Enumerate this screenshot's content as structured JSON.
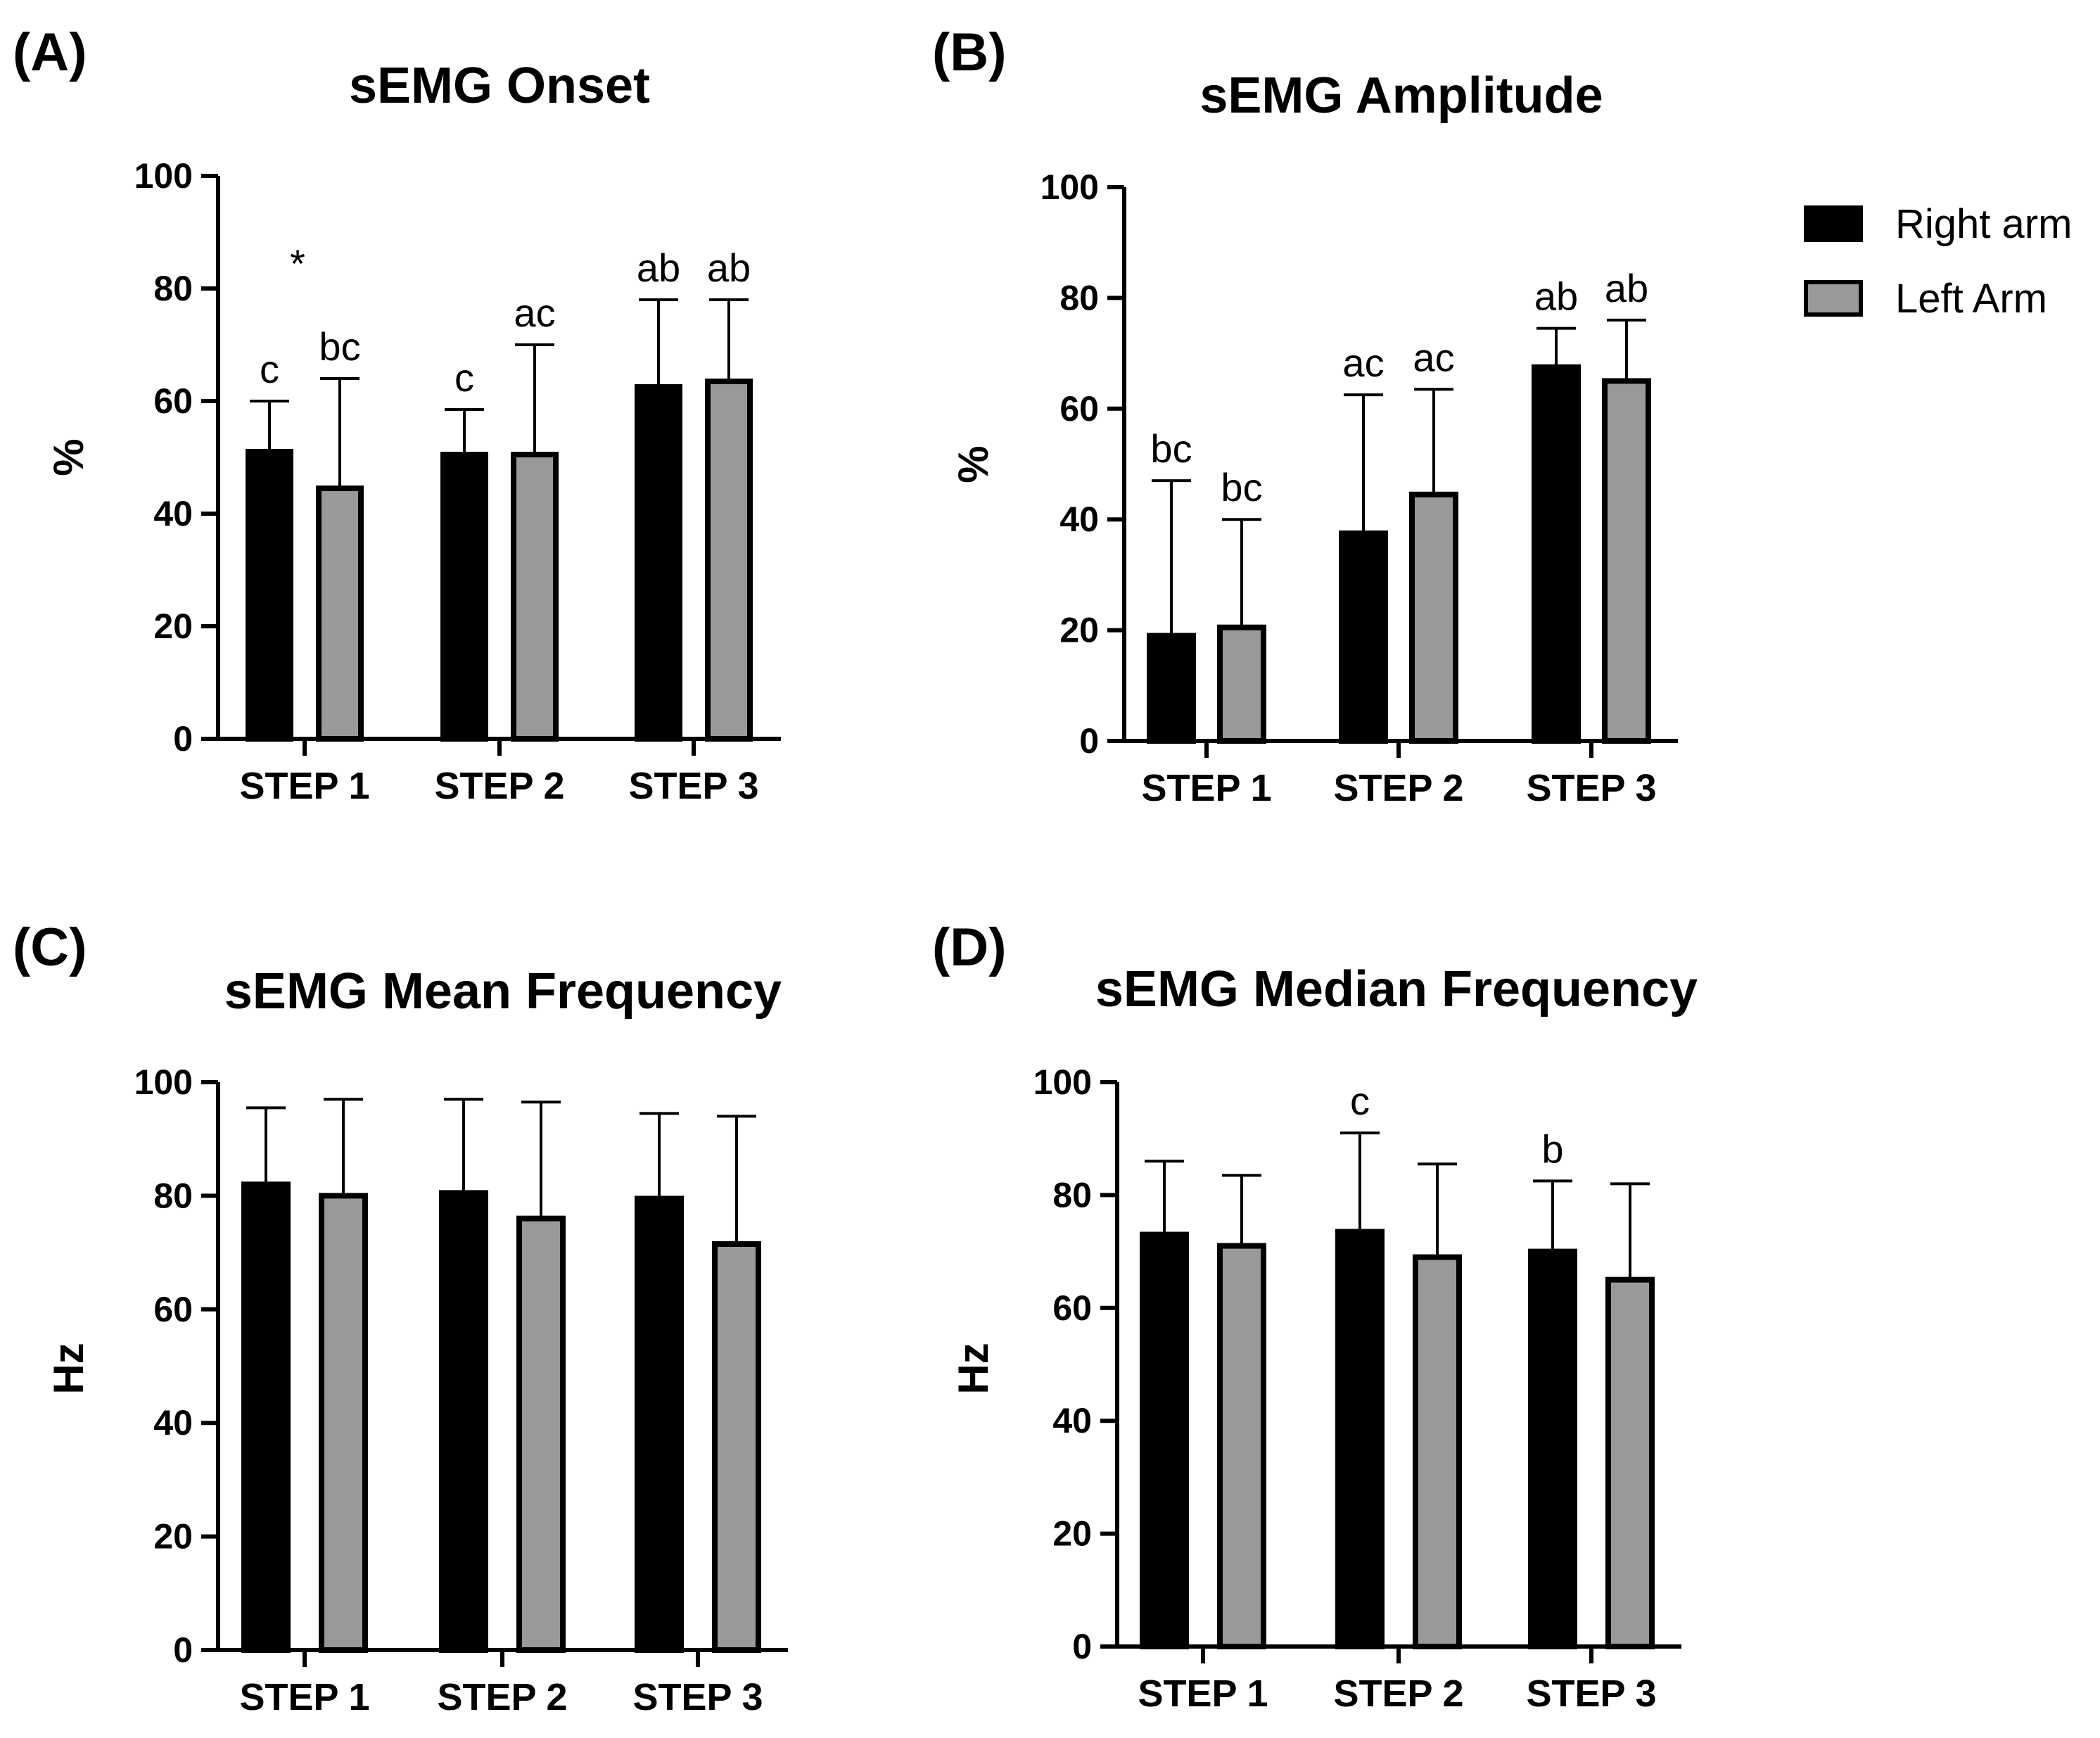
{
  "legend": [
    {
      "label": "Right arm",
      "color": "#000000"
    },
    {
      "label": "Left Arm",
      "color": "#999999"
    }
  ],
  "chart_data": [
    {
      "panel": "(A)",
      "type": "bar",
      "title": "sEMG Onset",
      "ylabel": "%",
      "ylim": [
        0,
        100
      ],
      "yticks": [
        "0",
        "20",
        "40",
        "60",
        "80",
        "100"
      ],
      "categories": [
        "STEP 1",
        "STEP 2",
        "STEP 3"
      ],
      "series": [
        {
          "name": "Right arm",
          "values": [
            51,
            50.5,
            62.5
          ],
          "errors": [
            9,
            8,
            15.5
          ],
          "labels": [
            "c",
            "c",
            "ab"
          ]
        },
        {
          "name": "Left Arm",
          "values": [
            44.5,
            50.5,
            63.5
          ],
          "errors": [
            19.5,
            19.5,
            14.5
          ],
          "labels": [
            "bc",
            "ac",
            "ab"
          ]
        }
      ],
      "extra_annotations": [
        {
          "text": "*",
          "category": 0
        }
      ]
    },
    {
      "panel": "(B)",
      "type": "bar",
      "title": "sEMG Amplitude",
      "ylabel": "%",
      "ylim": [
        0,
        100
      ],
      "yticks": [
        "0",
        "20",
        "40",
        "60",
        "80",
        "100"
      ],
      "categories": [
        "STEP 1",
        "STEP 2",
        "STEP 3"
      ],
      "series": [
        {
          "name": "Right arm",
          "values": [
            19,
            37.5,
            67.5
          ],
          "errors": [
            28,
            25,
            7
          ],
          "labels": [
            "bc",
            "ac",
            "ab"
          ]
        },
        {
          "name": "Left Arm",
          "values": [
            20.5,
            44.5,
            65
          ],
          "errors": [
            19.5,
            19,
            11
          ],
          "labels": [
            "bc",
            "ac",
            "ab"
          ]
        }
      ],
      "extra_annotations": []
    },
    {
      "panel": "(C)",
      "type": "bar",
      "title": "sEMG Mean Frequency",
      "ylabel": "Hz",
      "ylim": [
        0,
        100
      ],
      "yticks": [
        "0",
        "20",
        "40",
        "60",
        "80",
        "100"
      ],
      "categories": [
        "STEP 1",
        "STEP 2",
        "STEP 3"
      ],
      "series": [
        {
          "name": "Right arm",
          "values": [
            82,
            80.5,
            79.5
          ],
          "errors": [
            13.5,
            16.5,
            15
          ],
          "labels": [
            "",
            "",
            ""
          ]
        },
        {
          "name": "Left Arm",
          "values": [
            80,
            76,
            71.5
          ],
          "errors": [
            17,
            20.5,
            22.5
          ],
          "labels": [
            "",
            "",
            ""
          ]
        }
      ],
      "extra_annotations": []
    },
    {
      "panel": "(D)",
      "type": "bar",
      "title": "sEMG Median Frequency",
      "ylabel": "Hz",
      "ylim": [
        0,
        100
      ],
      "yticks": [
        "0",
        "20",
        "40",
        "60",
        "80",
        "100"
      ],
      "categories": [
        "STEP 1",
        "STEP 2",
        "STEP 3"
      ],
      "series": [
        {
          "name": "Right arm",
          "values": [
            73,
            73.5,
            70
          ],
          "errors": [
            13,
            17.5,
            12.5
          ],
          "labels": [
            "",
            "c",
            "b"
          ]
        },
        {
          "name": "Left Arm",
          "values": [
            71,
            69,
            65
          ],
          "errors": [
            12.5,
            16.5,
            17
          ],
          "labels": [
            "",
            "",
            ""
          ]
        }
      ],
      "extra_annotations": []
    }
  ]
}
